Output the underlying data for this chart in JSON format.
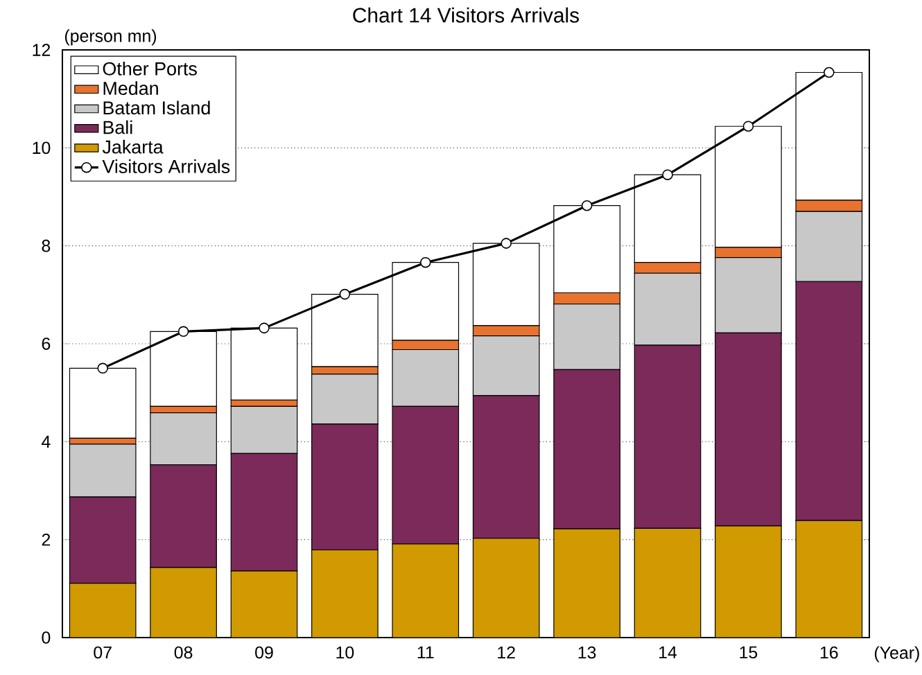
{
  "chart_data": {
    "type": "bar",
    "stacked": true,
    "title": "Chart 14 Visitors Arrivals",
    "ylabel": "(person mn)",
    "xlabel": "(Year)",
    "categories": [
      "07",
      "08",
      "09",
      "10",
      "11",
      "12",
      "13",
      "14",
      "15",
      "16"
    ],
    "series": [
      {
        "name": "Jakarta",
        "color": "#d09a00",
        "values": [
          1.11,
          1.43,
          1.36,
          1.79,
          1.91,
          2.03,
          2.22,
          2.23,
          2.28,
          2.39
        ]
      },
      {
        "name": "Bali",
        "color": "#7b2a5a",
        "values": [
          1.76,
          2.1,
          2.4,
          2.57,
          2.81,
          2.91,
          3.25,
          3.74,
          3.94,
          4.88
        ]
      },
      {
        "name": "Batam Island",
        "color": "#c8c8c8",
        "values": [
          1.08,
          1.06,
          0.96,
          1.02,
          1.16,
          1.22,
          1.34,
          1.47,
          1.54,
          1.43
        ]
      },
      {
        "name": "Medan",
        "color": "#e8732f",
        "values": [
          0.12,
          0.13,
          0.13,
          0.15,
          0.19,
          0.21,
          0.23,
          0.22,
          0.21,
          0.23
        ]
      },
      {
        "name": "Other Ports",
        "color": "#ffffff",
        "values": [
          1.43,
          1.53,
          1.47,
          1.48,
          1.59,
          1.68,
          1.78,
          1.79,
          2.47,
          2.61
        ]
      },
      {
        "name": "Visitors Arrivals",
        "type": "line",
        "color": "#000000",
        "marker": "circle",
        "values": [
          5.5,
          6.25,
          6.32,
          7.01,
          7.66,
          8.05,
          8.82,
          9.45,
          10.44,
          11.54
        ]
      }
    ],
    "ylim": [
      0,
      12
    ],
    "yticks": [
      0,
      2,
      4,
      6,
      8,
      10,
      12
    ],
    "grid": "y",
    "legend": "top left"
  }
}
